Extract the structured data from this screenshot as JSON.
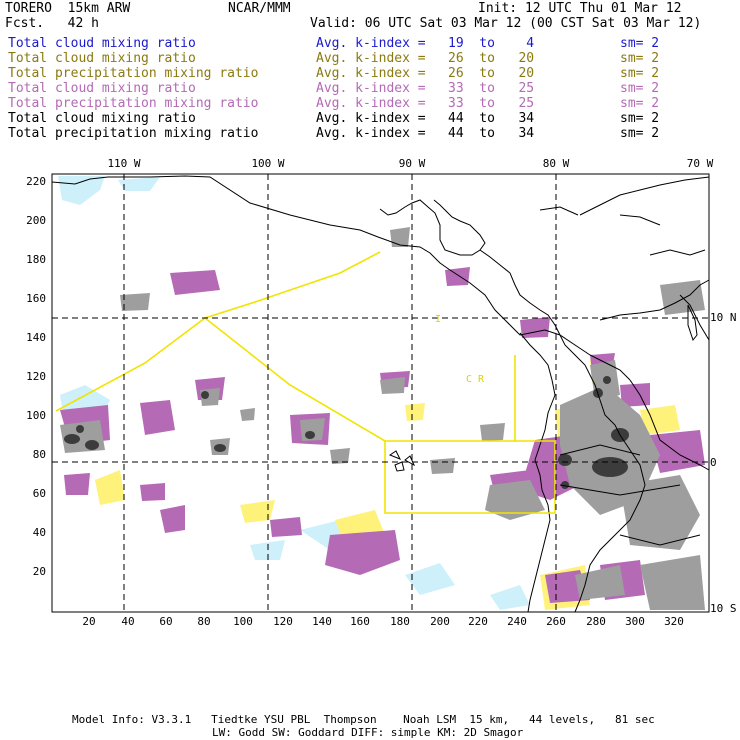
{
  "header": {
    "model": "TORERO  15km ARW",
    "forecast": "Fcst.   42 h",
    "center": "NCAR/MMM",
    "init": "Init: 12 UTC Thu 01 Mar 12",
    "valid": "Valid: 06 UTC Sat 03 Mar 12 (00 CST Sat 03 Mar 12)"
  },
  "legend": [
    {
      "variable": "Total cloud mixing ratio",
      "avg": "Avg. k-index =",
      "range": "19  to    4",
      "sm": "sm= 2",
      "color": "#1a1acc"
    },
    {
      "variable": "Total cloud mixing ratio",
      "avg": "Avg. k-index =",
      "range": "26  to   20",
      "sm": "sm= 2",
      "color": "#8a7a10"
    },
    {
      "variable": "Total precipitation mixing ratio",
      "avg": "Avg. k-index =",
      "range": "26  to   20",
      "sm": "sm= 2",
      "color": "#8a7a10"
    },
    {
      "variable": "Total cloud mixing ratio",
      "avg": "Avg. k-index =",
      "range": "33  to   25",
      "sm": "sm= 2",
      "color": "#b46ab4"
    },
    {
      "variable": "Total precipitation mixing ratio",
      "avg": "Avg. k-index =",
      "range": "33  to   25",
      "sm": "sm= 2",
      "color": "#b46ab4"
    },
    {
      "variable": "Total cloud mixing ratio",
      "avg": "Avg. k-index =",
      "range": "44  to   34",
      "sm": "sm= 2",
      "color": "#000000"
    },
    {
      "variable": "Total precipitation mixing ratio",
      "avg": "Avg. k-index =",
      "range": "44  to   34",
      "sm": "sm= 2",
      "color": "#000000"
    }
  ],
  "map": {
    "lon_labels": [
      "110 W",
      "100 W",
      "90 W",
      "80 W",
      "70 W"
    ],
    "lat_labels": [
      "10 N",
      "0",
      "10 S"
    ],
    "y_ticks": [
      "220",
      "200",
      "180",
      "160",
      "140",
      "120",
      "100",
      "80",
      "60",
      "40",
      "20"
    ],
    "x_ticks": [
      "20",
      "40",
      "60",
      "80",
      "100",
      "120",
      "140",
      "160",
      "180",
      "200",
      "220",
      "240",
      "260",
      "280",
      "300",
      "320"
    ],
    "region_labels": [
      "I",
      "C R"
    ],
    "colors": {
      "light_cyan": "#cdf0fb",
      "yellow": "#fff27a",
      "purple": "#b46ab4",
      "gray": "#9e9e9e",
      "dark_gray": "#3c3c3c",
      "domain_line": "#f0e400"
    }
  },
  "footer": {
    "line1": "Model Info: V3.3.1   Tiedtke YSU PBL  Thompson    Noah LSM  15 km,   44 levels,   81 sec",
    "line2": "LW: Godd SW: Goddard DIFF: simple KM: 2D Smagor"
  }
}
